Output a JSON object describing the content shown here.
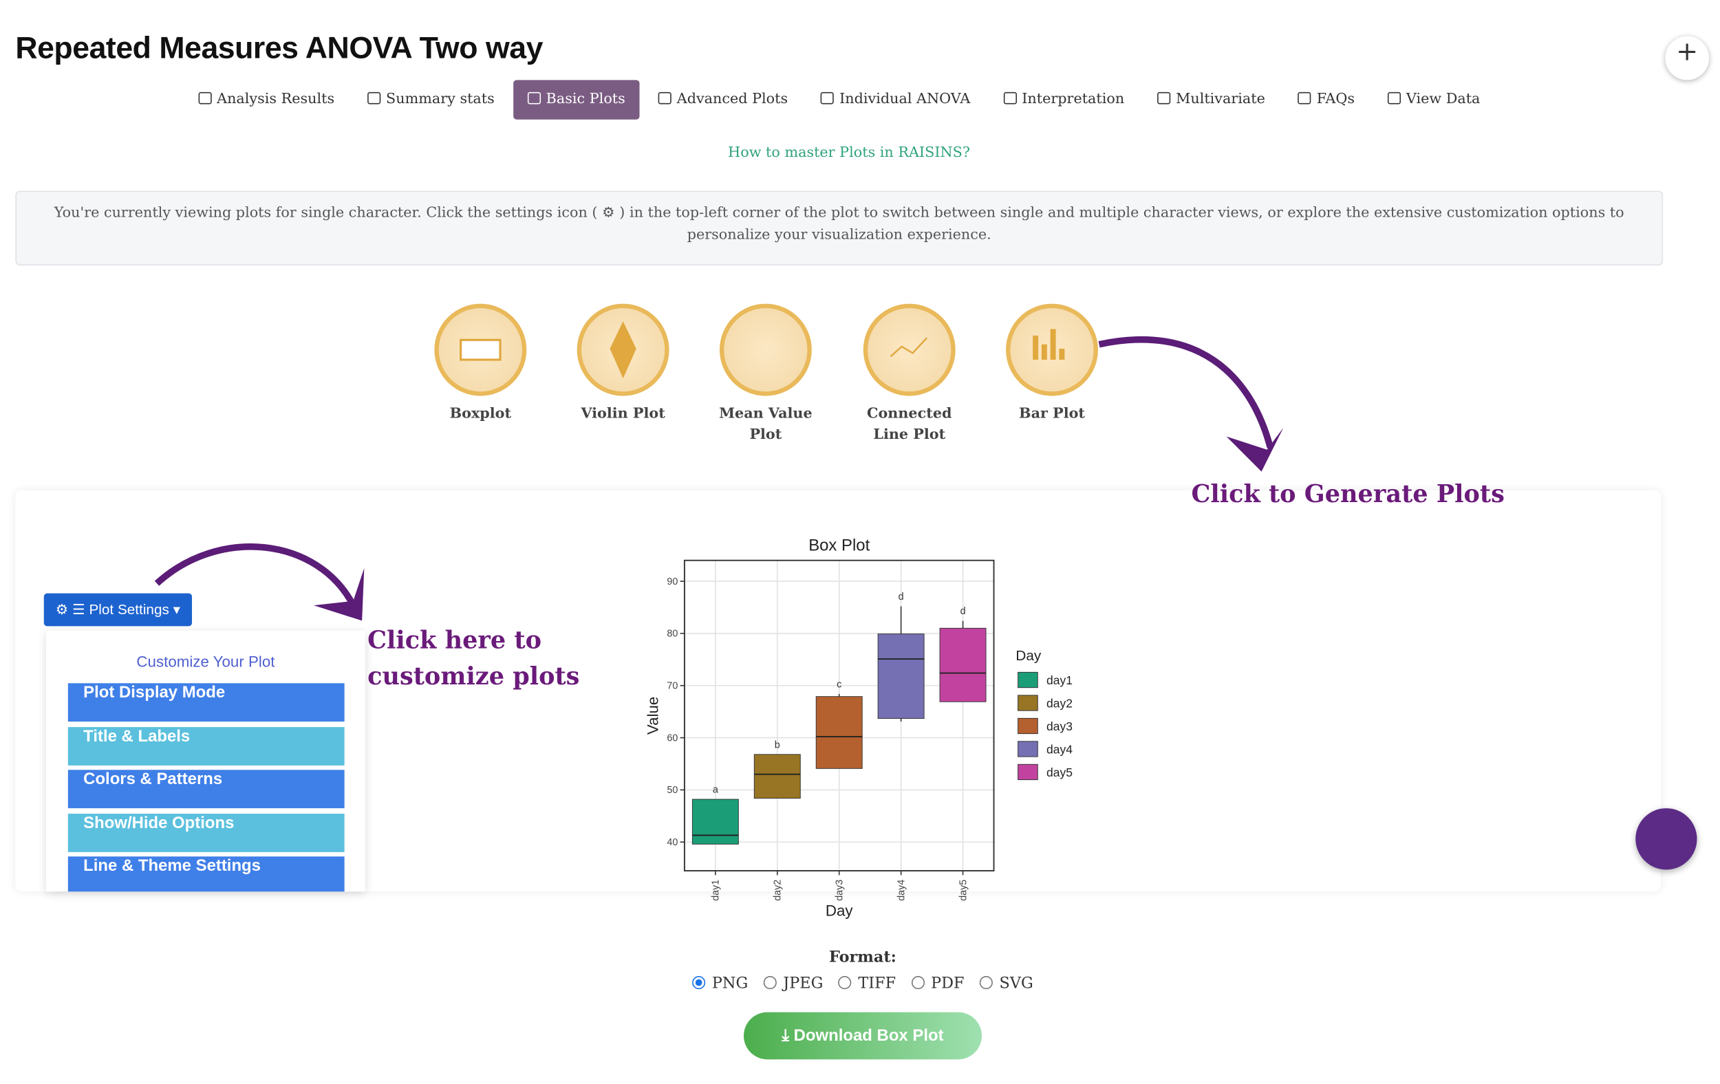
{
  "header": {
    "title": "Repeated Measures ANOVA Two way"
  },
  "tabs": {
    "items": [
      "Analysis Results",
      "Summary stats",
      "Basic Plots",
      "Advanced Plots",
      "Individual ANOVA",
      "Interpretation",
      "Multivariate",
      "FAQs",
      "View Data"
    ],
    "active": 2
  },
  "help_link": "How to master Plots in RAISINS?",
  "info": "You're currently viewing plots for single character. Click the settings icon ( ⚙ ) in the top-left corner of the plot to switch between single and multiple character views, or explore the extensive customization options to personalize your visualization experience.",
  "plot_types": [
    "Boxplot",
    "Violin Plot",
    "Mean Value Plot",
    "Connected Line Plot",
    "Bar Plot"
  ],
  "annotations": {
    "generate": "Click to Generate Plots",
    "customize": "Click here to customize plots"
  },
  "settings": {
    "button": "Plot Settings",
    "panel_title": "Customize Your Plot",
    "items": [
      "Plot Display Mode",
      "Title & Labels",
      "Colors & Patterns",
      "Show/Hide Options",
      "Line & Theme Settings"
    ]
  },
  "download": {
    "format_label": "Format:",
    "formats": [
      "PNG",
      "JPEG",
      "TIFF",
      "PDF",
      "SVG"
    ],
    "selected": 0,
    "button": "Download Box Plot"
  },
  "chart_data": {
    "type": "box",
    "title": "Box Plot",
    "x_label": "Day",
    "y_label": "Value",
    "legend_title": "Day",
    "categories": [
      "day1",
      "day2",
      "day3",
      "day4",
      "day5"
    ],
    "colors": [
      "#1b9e77",
      "#977524",
      "#b5602f",
      "#7570b3",
      "#c2439f"
    ],
    "boxes": [
      {
        "min": 39.6,
        "q1": 39.6,
        "median": 41.3,
        "q3": 48.2,
        "max": 48.2
      },
      {
        "min": 48.4,
        "q1": 48.4,
        "median": 53.0,
        "q3": 56.8,
        "max": 56.8
      },
      {
        "min": 54.1,
        "q1": 54.1,
        "median": 60.2,
        "q3": 67.9,
        "max": 68.4
      },
      {
        "min": 63.1,
        "q1": 63.7,
        "median": 75.1,
        "q3": 79.9,
        "max": 85.2
      },
      {
        "min": 66.9,
        "q1": 66.9,
        "median": 72.4,
        "q3": 81.0,
        "max": 82.4
      }
    ],
    "group_labels": [
      "a",
      "b",
      "c",
      "d",
      "d"
    ],
    "ylim": [
      34.5,
      94
    ],
    "yticks": [
      40,
      50,
      60,
      70,
      80,
      90
    ],
    "grid": true
  }
}
